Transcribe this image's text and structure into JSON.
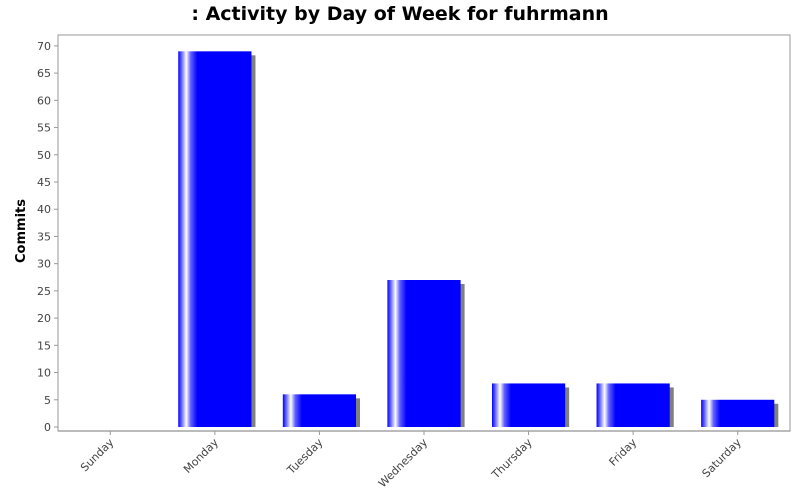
{
  "chart_data": {
    "type": "bar",
    "title": ": Activity by Day of Week for fuhrmann",
    "xlabel": "",
    "ylabel": "Commits",
    "categories": [
      "Sunday",
      "Monday",
      "Tuesday",
      "Wednesday",
      "Thursday",
      "Friday",
      "Saturday"
    ],
    "values": [
      0,
      69,
      6,
      27,
      8,
      8,
      5
    ],
    "ylim": [
      0,
      72
    ],
    "yticks": [
      0,
      5,
      10,
      15,
      20,
      25,
      30,
      35,
      40,
      45,
      50,
      55,
      60,
      65,
      70
    ],
    "grid": false,
    "legend": "none",
    "colors": {
      "bar": "#0000ff",
      "shadow": "#808080",
      "axis": "#888888"
    }
  }
}
